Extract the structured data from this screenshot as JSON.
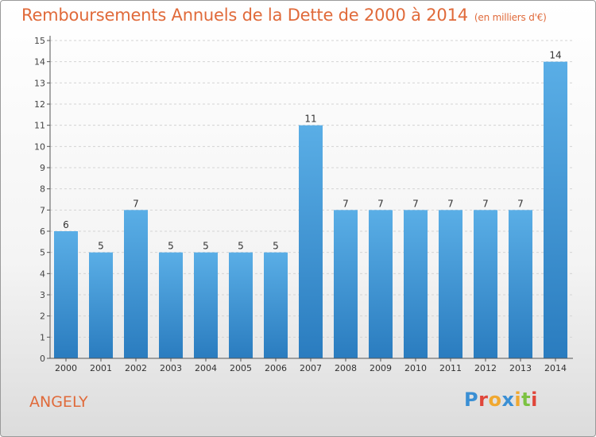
{
  "chart_data": {
    "type": "bar",
    "title": "Remboursements Annuels de la Dette de 2000 à 2014",
    "unit": "(en milliers d'€)",
    "categories": [
      "2000",
      "2001",
      "2002",
      "2003",
      "2004",
      "2005",
      "2006",
      "2007",
      "2008",
      "2009",
      "2010",
      "2011",
      "2012",
      "2013",
      "2014"
    ],
    "values": [
      6,
      5,
      7,
      5,
      5,
      5,
      5,
      11,
      7,
      7,
      7,
      7,
      7,
      7,
      14
    ],
    "ylim": [
      0,
      15
    ],
    "yticks": [
      0,
      1,
      2,
      3,
      4,
      5,
      6,
      7,
      8,
      9,
      10,
      11,
      12,
      13,
      14,
      15
    ],
    "grid": true,
    "bar_color": "#4a9ad8"
  },
  "footer": {
    "commune": "ANGELY"
  },
  "logo": {
    "text": "Proxiti",
    "colors": [
      "#3a8fd4",
      "#e0463a",
      "#f0a830",
      "#3a8fd4",
      "#f0a830",
      "#7cc242",
      "#e0463a"
    ]
  }
}
